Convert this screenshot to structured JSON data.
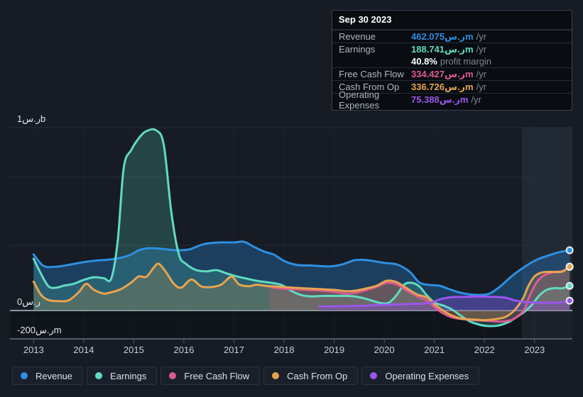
{
  "tooltip": {
    "date": "Sep 30 2023",
    "rows": [
      {
        "label": "Revenue",
        "value": "462.075ر.سm",
        "suffix": "/yr",
        "series": "revenue"
      },
      {
        "label": "Earnings",
        "value": "188.741ر.سm",
        "suffix": "/yr",
        "series": "earnings"
      },
      {
        "label": "",
        "value": "40.8%",
        "suffix": "profit margin",
        "series": "margin"
      },
      {
        "label": "Free Cash Flow",
        "value": "334.427ر.سm",
        "suffix": "/yr",
        "series": "fcf"
      },
      {
        "label": "Cash From Op",
        "value": "336.726ر.سm",
        "suffix": "/yr",
        "series": "cashop"
      },
      {
        "label": "Operating Expenses",
        "value": "75.388ر.سm",
        "suffix": "/yr",
        "series": "opex"
      }
    ]
  },
  "chart_data": {
    "type": "area",
    "x_label": "year",
    "x_ticks": [
      2013,
      2014,
      2015,
      2016,
      2017,
      2018,
      2019,
      2020,
      2021,
      2022,
      2023
    ],
    "x_range": [
      2013,
      2023.7
    ],
    "y_unit": "SAR millions (ر.س)",
    "y_gridlines": [
      {
        "value": 1000,
        "label": "1ر.سb"
      },
      {
        "value": 790,
        "label": ""
      },
      {
        "value": 500,
        "label": ""
      },
      {
        "value": 0,
        "label": "0ر.س"
      },
      {
        "value": -200,
        "label": "-200ر.سm"
      }
    ],
    "highlight_from_x": 2022.75,
    "legend_position": "bottom",
    "series": [
      {
        "key": "revenue",
        "name": "Revenue",
        "color": "#2e8fe0",
        "fill": "rgba(37,115,180,0.42)",
        "points": [
          [
            2013.0,
            430
          ],
          [
            2013.2,
            342
          ],
          [
            2013.45,
            336
          ],
          [
            2013.7,
            350
          ],
          [
            2013.95,
            368
          ],
          [
            2014.25,
            383
          ],
          [
            2014.5,
            390
          ],
          [
            2014.75,
            405
          ],
          [
            2014.95,
            430
          ],
          [
            2015.1,
            462
          ],
          [
            2015.3,
            478
          ],
          [
            2015.6,
            472
          ],
          [
            2015.85,
            462
          ],
          [
            2016.1,
            468
          ],
          [
            2016.4,
            505
          ],
          [
            2016.7,
            512
          ],
          [
            2017.0,
            512
          ],
          [
            2017.2,
            515
          ],
          [
            2017.4,
            488
          ],
          [
            2017.6,
            452
          ],
          [
            2017.8,
            428
          ],
          [
            2018.0,
            380
          ],
          [
            2018.25,
            350
          ],
          [
            2018.55,
            345
          ],
          [
            2018.9,
            338
          ],
          [
            2019.15,
            352
          ],
          [
            2019.4,
            385
          ],
          [
            2019.6,
            388
          ],
          [
            2019.8,
            378
          ],
          [
            2020.0,
            365
          ],
          [
            2020.25,
            353
          ],
          [
            2020.5,
            300
          ],
          [
            2020.7,
            215
          ],
          [
            2020.9,
            196
          ],
          [
            2021.1,
            190
          ],
          [
            2021.3,
            163
          ],
          [
            2021.5,
            138
          ],
          [
            2021.7,
            124
          ],
          [
            2021.95,
            120
          ],
          [
            2022.1,
            130
          ],
          [
            2022.3,
            180
          ],
          [
            2022.55,
            265
          ],
          [
            2022.8,
            335
          ],
          [
            2023.05,
            390
          ],
          [
            2023.3,
            425
          ],
          [
            2023.5,
            448
          ],
          [
            2023.7,
            462.075
          ]
        ]
      },
      {
        "key": "earnings",
        "name": "Earnings",
        "color": "#5fdbc2",
        "fill": "rgba(80,190,170,0.25)",
        "points": [
          [
            2013.0,
            397
          ],
          [
            2013.15,
            280
          ],
          [
            2013.3,
            185
          ],
          [
            2013.45,
            175
          ],
          [
            2013.6,
            190
          ],
          [
            2013.8,
            205
          ],
          [
            2014.0,
            235
          ],
          [
            2014.2,
            255
          ],
          [
            2014.4,
            248
          ],
          [
            2014.55,
            245
          ],
          [
            2014.68,
            520
          ],
          [
            2014.8,
            830
          ],
          [
            2014.95,
            905
          ],
          [
            2015.1,
            955
          ],
          [
            2015.25,
            985
          ],
          [
            2015.45,
            988
          ],
          [
            2015.6,
            925
          ],
          [
            2015.75,
            640
          ],
          [
            2015.9,
            430
          ],
          [
            2016.05,
            355
          ],
          [
            2016.25,
            310
          ],
          [
            2016.45,
            300
          ],
          [
            2016.65,
            310
          ],
          [
            2016.85,
            285
          ],
          [
            2017.05,
            262
          ],
          [
            2017.25,
            245
          ],
          [
            2017.5,
            225
          ],
          [
            2017.75,
            212
          ],
          [
            2017.95,
            196
          ],
          [
            2018.15,
            150
          ],
          [
            2018.35,
            118
          ],
          [
            2018.55,
            108
          ],
          [
            2018.8,
            112
          ],
          [
            2019.1,
            112
          ],
          [
            2019.35,
            110
          ],
          [
            2019.55,
            98
          ],
          [
            2019.75,
            76
          ],
          [
            2019.95,
            56
          ],
          [
            2020.1,
            62
          ],
          [
            2020.25,
            120
          ],
          [
            2020.4,
            200
          ],
          [
            2020.55,
            212
          ],
          [
            2020.7,
            185
          ],
          [
            2020.85,
            116
          ],
          [
            2021.0,
            62
          ],
          [
            2021.2,
            35
          ],
          [
            2021.35,
            8
          ],
          [
            2021.5,
            -30
          ],
          [
            2021.7,
            -75
          ],
          [
            2021.9,
            -100
          ],
          [
            2022.1,
            -110
          ],
          [
            2022.3,
            -104
          ],
          [
            2022.5,
            -78
          ],
          [
            2022.65,
            -45
          ],
          [
            2022.8,
            -8
          ],
          [
            2022.95,
            45
          ],
          [
            2023.1,
            118
          ],
          [
            2023.25,
            160
          ],
          [
            2023.4,
            172
          ],
          [
            2023.55,
            170
          ],
          [
            2023.7,
            188.741
          ]
        ]
      },
      {
        "key": "fcf",
        "name": "Free Cash Flow",
        "color": "#de5a90",
        "fill": "rgba(200,80,120,0.22)",
        "points": [
          [
            2017.7,
            184
          ],
          [
            2017.9,
            170
          ],
          [
            2018.15,
            164
          ],
          [
            2018.45,
            158
          ],
          [
            2018.75,
            152
          ],
          [
            2019.0,
            142
          ],
          [
            2019.25,
            128
          ],
          [
            2019.45,
            138
          ],
          [
            2019.65,
            158
          ],
          [
            2019.85,
            182
          ],
          [
            2020.05,
            212
          ],
          [
            2020.25,
            200
          ],
          [
            2020.45,
            152
          ],
          [
            2020.65,
            110
          ],
          [
            2020.85,
            76
          ],
          [
            2021.0,
            28
          ],
          [
            2021.15,
            -15
          ],
          [
            2021.35,
            -48
          ],
          [
            2021.55,
            -60
          ],
          [
            2021.8,
            -67
          ],
          [
            2022.0,
            -72
          ],
          [
            2022.2,
            -76
          ],
          [
            2022.35,
            -78
          ],
          [
            2022.55,
            -65
          ],
          [
            2022.7,
            -30
          ],
          [
            2022.8,
            10
          ],
          [
            2022.9,
            110
          ],
          [
            2023.05,
            220
          ],
          [
            2023.2,
            272
          ],
          [
            2023.4,
            295
          ],
          [
            2023.55,
            302
          ],
          [
            2023.7,
            334.427
          ]
        ]
      },
      {
        "key": "cashop",
        "name": "Cash From Op",
        "color": "#e7a44f",
        "fill": "rgba(220,160,70,0.22)",
        "points": [
          [
            2013.0,
            221
          ],
          [
            2013.15,
            120
          ],
          [
            2013.3,
            80
          ],
          [
            2013.5,
            72
          ],
          [
            2013.7,
            78
          ],
          [
            2013.9,
            140
          ],
          [
            2014.05,
            205
          ],
          [
            2014.2,
            160
          ],
          [
            2014.4,
            130
          ],
          [
            2014.55,
            140
          ],
          [
            2014.75,
            165
          ],
          [
            2014.95,
            215
          ],
          [
            2015.1,
            262
          ],
          [
            2015.25,
            258
          ],
          [
            2015.4,
            330
          ],
          [
            2015.5,
            358
          ],
          [
            2015.65,
            290
          ],
          [
            2015.8,
            205
          ],
          [
            2015.95,
            175
          ],
          [
            2016.15,
            238
          ],
          [
            2016.35,
            185
          ],
          [
            2016.55,
            180
          ],
          [
            2016.75,
            200
          ],
          [
            2016.95,
            260
          ],
          [
            2017.1,
            200
          ],
          [
            2017.3,
            186
          ],
          [
            2017.45,
            198
          ],
          [
            2017.65,
            188
          ],
          [
            2017.85,
            184
          ],
          [
            2018.1,
            177
          ],
          [
            2018.4,
            170
          ],
          [
            2018.7,
            164
          ],
          [
            2019.0,
            158
          ],
          [
            2019.25,
            148
          ],
          [
            2019.45,
            154
          ],
          [
            2019.65,
            170
          ],
          [
            2019.85,
            190
          ],
          [
            2020.05,
            228
          ],
          [
            2020.25,
            217
          ],
          [
            2020.45,
            170
          ],
          [
            2020.65,
            124
          ],
          [
            2020.85,
            100
          ],
          [
            2021.0,
            50
          ],
          [
            2021.15,
            5
          ],
          [
            2021.35,
            -35
          ],
          [
            2021.55,
            -58
          ],
          [
            2021.8,
            -64
          ],
          [
            2022.0,
            -68
          ],
          [
            2022.2,
            -62
          ],
          [
            2022.4,
            -48
          ],
          [
            2022.55,
            -15
          ],
          [
            2022.68,
            40
          ],
          [
            2022.78,
            100
          ],
          [
            2022.88,
            190
          ],
          [
            2023.0,
            262
          ],
          [
            2023.15,
            292
          ],
          [
            2023.35,
            296
          ],
          [
            2023.55,
            298
          ],
          [
            2023.7,
            336.726
          ]
        ]
      },
      {
        "key": "opex",
        "name": "Operating Expenses",
        "color": "#9c55eb",
        "fill": "rgba(130,70,200,0.40)",
        "points": [
          [
            2018.7,
            30
          ],
          [
            2019.0,
            32
          ],
          [
            2019.3,
            34
          ],
          [
            2019.6,
            36
          ],
          [
            2019.9,
            42
          ],
          [
            2020.2,
            46
          ],
          [
            2020.5,
            50
          ],
          [
            2020.8,
            54
          ],
          [
            2020.95,
            62
          ],
          [
            2021.1,
            85
          ],
          [
            2021.25,
            98
          ],
          [
            2021.4,
            104
          ],
          [
            2021.6,
            104
          ],
          [
            2021.85,
            107
          ],
          [
            2022.1,
            105
          ],
          [
            2022.3,
            103
          ],
          [
            2022.45,
            96
          ],
          [
            2022.6,
            78
          ],
          [
            2022.8,
            66
          ],
          [
            2023.0,
            61
          ],
          [
            2023.2,
            60
          ],
          [
            2023.4,
            60
          ],
          [
            2023.55,
            64
          ],
          [
            2023.7,
            75.388
          ]
        ]
      }
    ]
  }
}
